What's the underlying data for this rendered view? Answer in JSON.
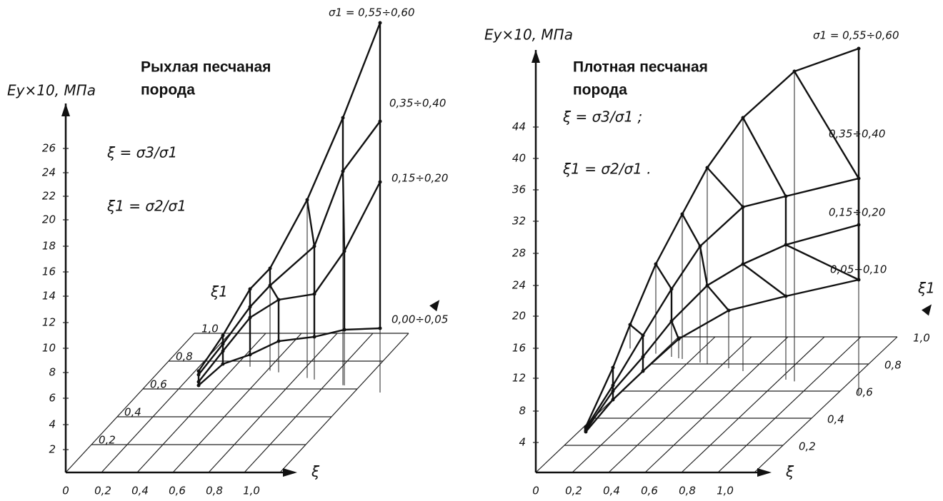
{
  "panels": [
    {
      "title": [
        "Рыхлая песчаная",
        "порода"
      ],
      "y_label": "Ey×10, МПа",
      "x_label": "ξ",
      "depth_label": "ξ1",
      "formulas": [
        "ξ = σ3/σ1",
        "ξ1 = σ2/σ1"
      ],
      "y_ticks": [
        "26",
        "24",
        "22",
        "20",
        "18",
        "16",
        "14",
        "12",
        "10",
        "8",
        "6",
        "4",
        "2"
      ],
      "x_ticks": [
        "0",
        "0,2",
        "0,4",
        "0,6",
        "0,8",
        "1,0"
      ],
      "depth_ticks": [
        "0,2",
        "0,4",
        "0,6",
        "0,8",
        "1,0"
      ],
      "curve_labels": [
        "σ1 = 0,55÷0,60",
        "0,35÷0,40",
        "0,15÷0,20",
        "0,00÷0,05"
      ]
    },
    {
      "title": [
        "Плотная песчаная",
        "порода"
      ],
      "y_label": "Ey×10, МПа",
      "x_label": "ξ",
      "depth_label": "ξ1",
      "formulas": [
        "ξ = σ3/σ1 ;",
        "ξ1 = σ2/σ1 ."
      ],
      "y_ticks": [
        "44",
        "40",
        "36",
        "32",
        "28",
        "24",
        "20",
        "16",
        "12",
        "8",
        "4"
      ],
      "x_ticks": [
        "0",
        "0,2",
        "0,4",
        "0,6",
        "0,8",
        "1,0"
      ],
      "depth_ticks": [
        "0,2",
        "0,4",
        "0,6",
        "0,8",
        "1,0"
      ],
      "curve_labels": [
        "σ1 = 0,55÷0,60",
        "0,35÷0,40",
        "0,15÷0,20",
        "0,05÷0,10"
      ]
    }
  ]
}
